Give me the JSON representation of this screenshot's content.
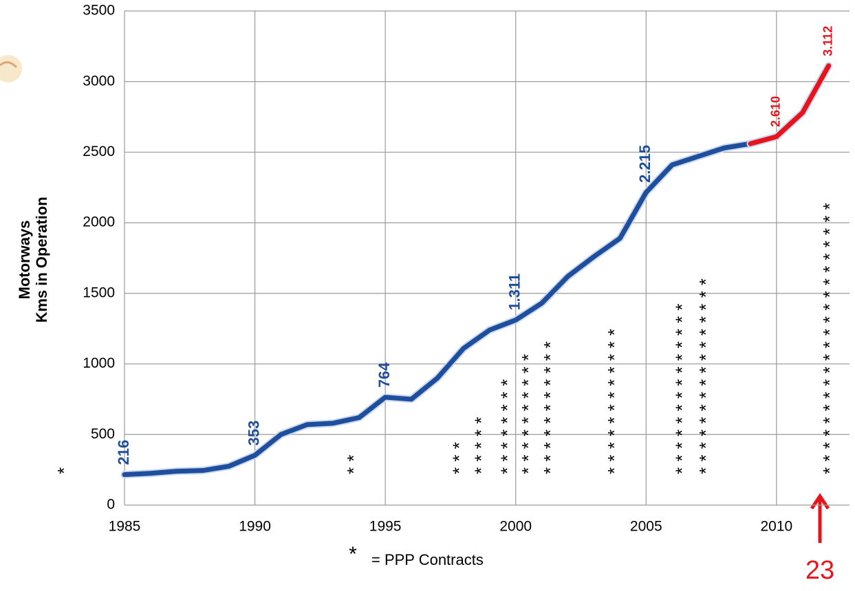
{
  "chart_data": {
    "type": "line",
    "y_label": [
      "Motorways",
      "Kms in Operation"
    ],
    "xlim": [
      1985,
      2012.8
    ],
    "xticks": [
      1985,
      1990,
      1995,
      2000,
      2005,
      2010
    ],
    "ylim": [
      0,
      3500
    ],
    "yticks": [
      0,
      500,
      1000,
      1500,
      2000,
      2500,
      3000,
      3500
    ],
    "grid": true,
    "series": [
      {
        "color": "#1f4e9c",
        "x": [
          1985,
          1986,
          1987,
          1988,
          1989,
          1990,
          1991,
          1992,
          1993,
          1994,
          1995,
          1996,
          1997,
          1998,
          1999,
          2000,
          2001,
          2002,
          2003,
          2004,
          2005,
          2006,
          2007,
          2008,
          2009
        ],
        "values": [
          216,
          225,
          240,
          245,
          275,
          353,
          500,
          570,
          580,
          620,
          764,
          750,
          900,
          1110,
          1240,
          1311,
          1430,
          1620,
          1760,
          1890,
          2215,
          2410,
          2470,
          2530,
          2560
        ],
        "value_labels": [
          "216",
          null,
          null,
          null,
          null,
          "353",
          null,
          null,
          null,
          null,
          "764",
          null,
          null,
          null,
          null,
          "1.311",
          null,
          null,
          null,
          null,
          "2.215",
          null,
          null,
          null,
          null
        ]
      },
      {
        "color": "#e8141c",
        "x": [
          2009,
          2010,
          2011,
          2012
        ],
        "values": [
          2560,
          2610,
          2780,
          3112
        ],
        "value_labels": [
          null,
          "2.610",
          null,
          "3.112"
        ]
      }
    ],
    "ppp_contracts": {
      "marker": "*",
      "label": "=  PPP Contracts",
      "x": [
        1982.5,
        1993.6,
        1997.65,
        1998.5,
        1999.5,
        2000.3,
        2001.15,
        2003.6,
        2006.2,
        2007.1,
        2011.85
      ],
      "counts": [
        1,
        2,
        3,
        5,
        8,
        10,
        11,
        12,
        14,
        16,
        22
      ]
    },
    "annotation": {
      "text": "23",
      "color": "#e8141c"
    }
  }
}
